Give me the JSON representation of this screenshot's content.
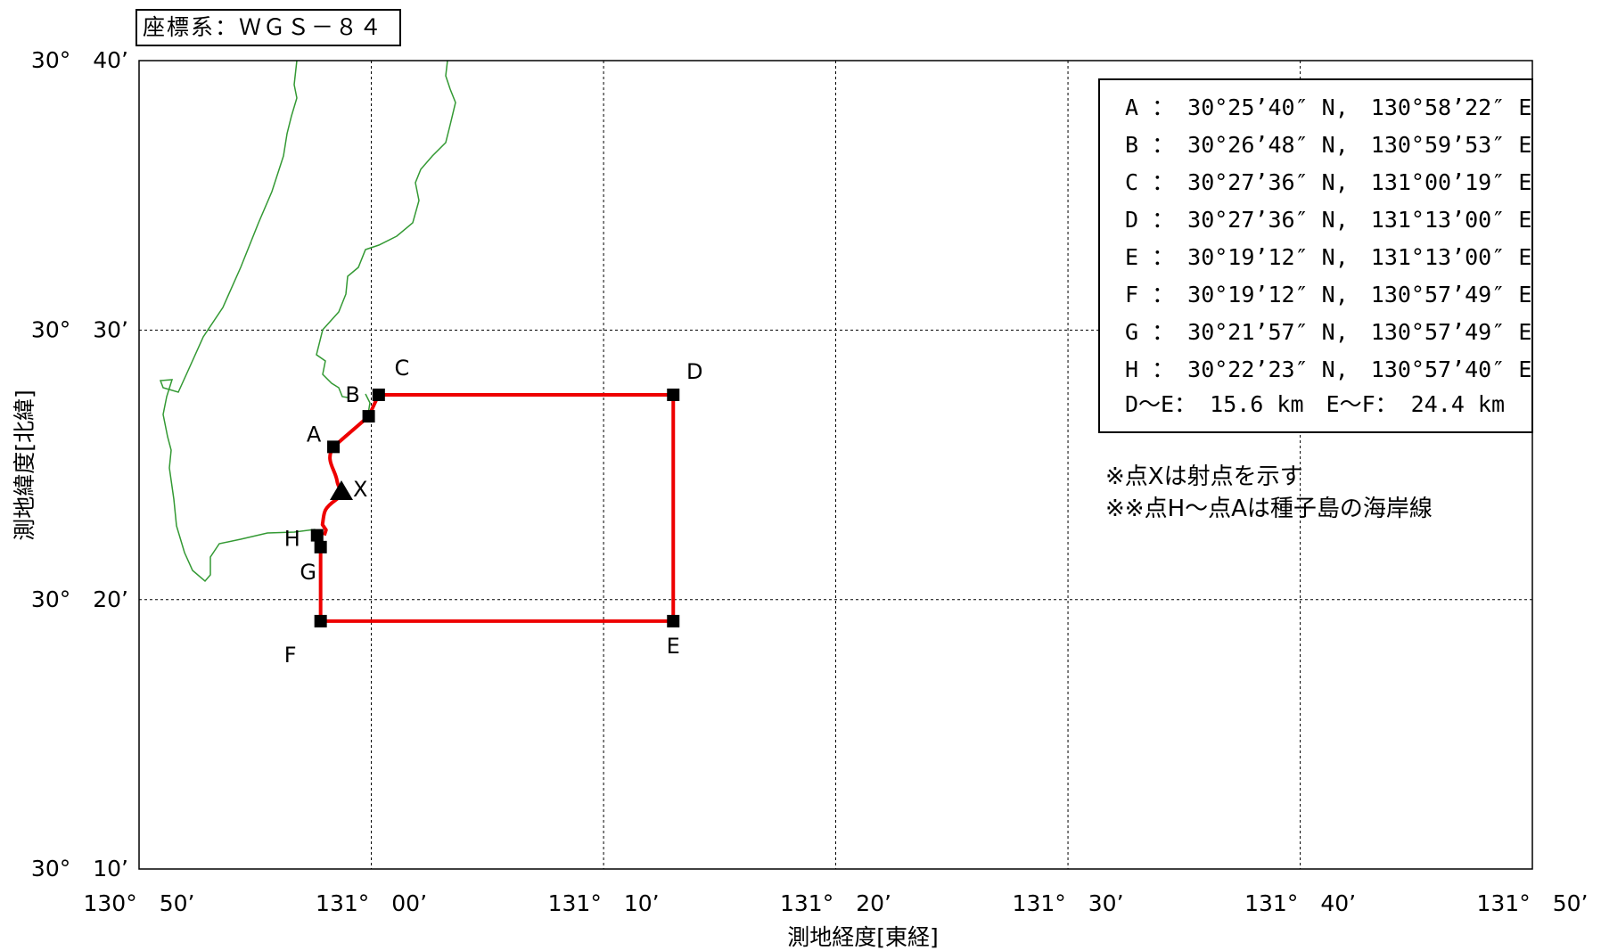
{
  "coord_system": "座標系：ＷＧＳ－８４",
  "axes": {
    "x_label": "測地経度[東経]",
    "y_label": "測地緯度[北緯]",
    "x_ticks": [
      {
        "lon": 130.8333,
        "label": "130°　50’"
      },
      {
        "lon": 131.0,
        "label": "131°　00’"
      },
      {
        "lon": 131.1667,
        "label": "131°　10’"
      },
      {
        "lon": 131.3333,
        "label": "131°　20’"
      },
      {
        "lon": 131.5,
        "label": "131°　30’"
      },
      {
        "lon": 131.6667,
        "label": "131°　40’"
      },
      {
        "lon": 131.8333,
        "label": "131°　50’"
      }
    ],
    "y_ticks": [
      {
        "lat": 30.6667,
        "label": "30°　40’"
      },
      {
        "lat": 30.5,
        "label": "30°　30’"
      },
      {
        "lat": 30.3333,
        "label": "30°　20’"
      },
      {
        "lat": 30.1667,
        "label": "30°　10’"
      }
    ],
    "lon_range": [
      130.8333,
      131.8333
    ],
    "lat_range": [
      30.1667,
      30.6667
    ],
    "grid": true
  },
  "legend": {
    "points": [
      "A ： 30°25’40″ N,　130°58’22″ E",
      "B ： 30°26’48″ N,　130°59’53″ E",
      "C ： 30°27’36″ N,　131°00’19″ E",
      "D ： 30°27’36″ N,　131°13’00″ E",
      "E ： 30°19’12″ N,　131°13’00″ E",
      "F ： 30°19’12″ N,　130°57’49″ E",
      "G ： 30°21’57″ N,　130°57’49″ E",
      "H ： 30°22’23″ N,　130°57’40″ E"
    ],
    "distance": "D～E： 15.6 km　E～F： 24.4 km"
  },
  "notes": [
    "※点Xは射点を示す",
    "※※点H～点Aは種子島の海岸線"
  ],
  "points": [
    {
      "label": "A",
      "lat": 30.4278,
      "lon": 130.9728
    },
    {
      "label": "B",
      "lat": 30.4467,
      "lon": 130.9981
    },
    {
      "label": "C",
      "lat": 30.46,
      "lon": 131.0053
    },
    {
      "label": "D",
      "lat": 30.46,
      "lon": 131.2167
    },
    {
      "label": "E",
      "lat": 30.32,
      "lon": 131.2167
    },
    {
      "label": "F",
      "lat": 30.32,
      "lon": 130.9636
    },
    {
      "label": "G",
      "lat": 30.3658,
      "lon": 130.9636
    },
    {
      "label": "H",
      "lat": 30.3731,
      "lon": 130.9611
    }
  ],
  "launch_point": {
    "label": "X"
  },
  "colors": {
    "area_line": "#ee0000",
    "coastline": "#339933",
    "grid": "#000000"
  }
}
